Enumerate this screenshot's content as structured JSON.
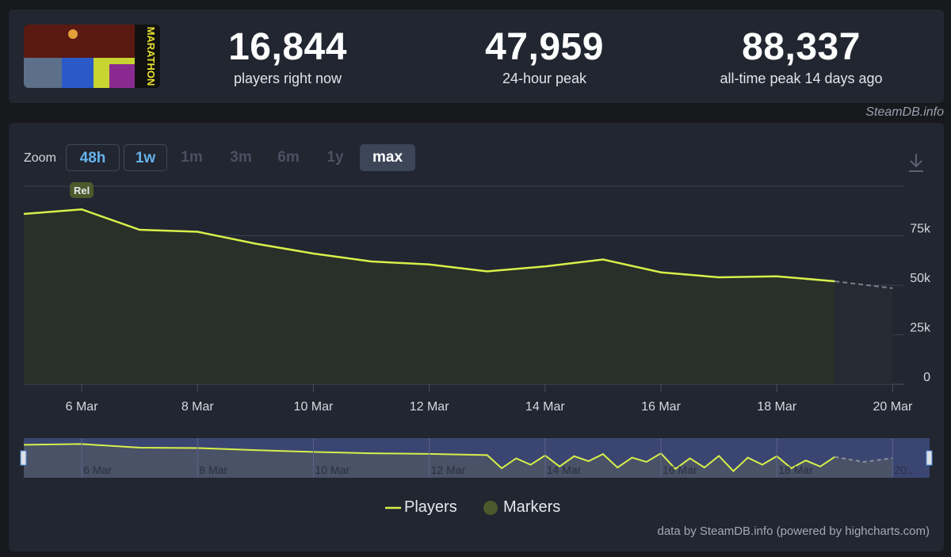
{
  "game": {
    "logo_text": "MARATHON"
  },
  "stats": [
    {
      "value": "16,844",
      "label": "players right now"
    },
    {
      "value": "47,959",
      "label": "24-hour peak"
    },
    {
      "value": "88,337",
      "label": "all-time peak 14 days ago"
    }
  ],
  "credit_top": "SteamDB.info",
  "zoom": {
    "label": "Zoom",
    "buttons": [
      "48h",
      "1w",
      "1m",
      "3m",
      "6m",
      "1y",
      "max"
    ]
  },
  "legend": {
    "players": "Players",
    "markers": "Markers"
  },
  "credit_bottom": "data by SteamDB.info (powered by highcharts.com)",
  "colors": {
    "series": "#d7f04a",
    "marker": "#4a5a2c",
    "navigator_bg": "#3b4572"
  },
  "chart_data": {
    "type": "area",
    "title": "",
    "series": [
      {
        "name": "Players",
        "x": [
          5,
          6,
          7,
          8,
          9,
          10,
          11,
          12,
          13,
          14,
          15,
          16,
          17,
          18,
          19
        ],
        "values": [
          86000,
          88300,
          78000,
          77000,
          71000,
          66000,
          62000,
          60500,
          57000,
          59500,
          63000,
          56500,
          54000,
          54500,
          52000
        ]
      },
      {
        "name": "Players (projected)",
        "x": [
          19,
          20
        ],
        "values": [
          52000,
          48500
        ]
      }
    ],
    "markers": [
      {
        "x": 6,
        "label": "Rel"
      }
    ],
    "x_ticks": [
      {
        "x": 6,
        "label": "6 Mar"
      },
      {
        "x": 8,
        "label": "8 Mar"
      },
      {
        "x": 10,
        "label": "10 Mar"
      },
      {
        "x": 12,
        "label": "12 Mar"
      },
      {
        "x": 14,
        "label": "14 Mar"
      },
      {
        "x": 16,
        "label": "16 Mar"
      },
      {
        "x": 18,
        "label": "18 Mar"
      },
      {
        "x": 20,
        "label": "20 Mar"
      }
    ],
    "y_ticks": [
      {
        "v": 0,
        "label": "0"
      },
      {
        "v": 25000,
        "label": "25k"
      },
      {
        "v": 50000,
        "label": "50k"
      },
      {
        "v": 75000,
        "label": "75k"
      }
    ],
    "xlim": [
      5,
      20.2
    ],
    "ylim": [
      0,
      100000
    ],
    "navigator": {
      "x": [
        5,
        6,
        7,
        8,
        9,
        10,
        11,
        12,
        13,
        13.25,
        13.5,
        13.75,
        14,
        14.25,
        14.5,
        14.75,
        15,
        15.25,
        15.5,
        15.75,
        16,
        16.25,
        16.5,
        16.75,
        17,
        17.25,
        17.5,
        17.75,
        18,
        18.25,
        18.5,
        18.75,
        19,
        19.5,
        20
      ],
      "values": [
        86000,
        88300,
        78000,
        77000,
        71000,
        66000,
        62000,
        60500,
        57000,
        20000,
        48000,
        30000,
        56000,
        25000,
        54000,
        40000,
        60000,
        22000,
        50000,
        38000,
        62000,
        18000,
        48000,
        22000,
        55000,
        12000,
        50000,
        30000,
        54000,
        20000,
        42000,
        25000,
        52000,
        38000,
        48500
      ],
      "x_ticks": [
        "6 Mar",
        "8 Mar",
        "10 Mar",
        "12 Mar",
        "14 Mar",
        "16 Mar",
        "18 Mar",
        "20..."
      ]
    }
  }
}
